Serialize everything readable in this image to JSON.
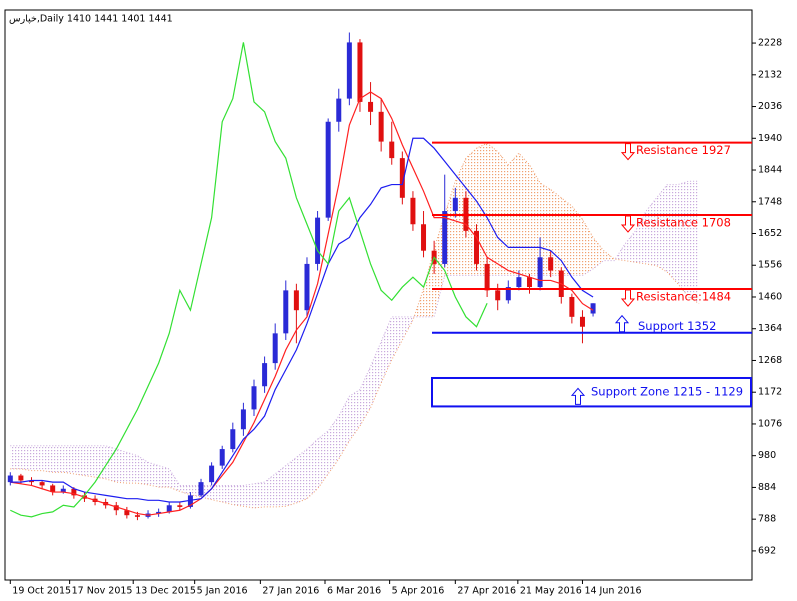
{
  "chart_data": {
    "type": "candlestick",
    "title": "خپارس,Daily  1410 1441 1401 1441",
    "x": [
      0,
      1,
      2,
      3,
      4,
      5,
      6,
      7,
      8,
      9,
      10,
      11,
      12,
      13,
      14,
      15,
      16,
      17,
      18,
      19,
      20,
      21,
      22,
      23,
      24,
      25,
      26,
      27,
      28,
      29,
      30,
      31,
      32,
      33,
      34,
      35,
      36,
      37,
      38,
      39,
      40,
      41,
      42,
      43,
      44,
      45,
      46,
      47,
      48,
      49,
      50,
      51,
      52,
      53,
      54,
      55
    ],
    "open": [
      900,
      920,
      905,
      900,
      890,
      870,
      880,
      860,
      850,
      840,
      830,
      815,
      800,
      795,
      805,
      810,
      830,
      825,
      860,
      900,
      950,
      1000,
      1060,
      1120,
      1190,
      1260,
      1350,
      1480,
      1420,
      1560,
      1700,
      1990,
      2060,
      2230,
      2050,
      2020,
      1930,
      1880,
      1760,
      1680,
      1600,
      1560,
      1720,
      1760,
      1660,
      1560,
      1480,
      1450,
      1490,
      1520,
      1490,
      1580,
      1540,
      1460,
      1400,
      1410
    ],
    "high": [
      930,
      925,
      915,
      905,
      895,
      890,
      885,
      870,
      860,
      850,
      840,
      825,
      810,
      815,
      820,
      840,
      840,
      870,
      910,
      960,
      1010,
      1080,
      1140,
      1210,
      1280,
      1380,
      1510,
      1500,
      1580,
      1720,
      2000,
      2090,
      2260,
      2240,
      2110,
      2060,
      1990,
      1900,
      1780,
      1720,
      1630,
      1830,
      1790,
      1780,
      1680,
      1580,
      1500,
      1510,
      1540,
      1530,
      1640,
      1600,
      1550,
      1470,
      1420,
      1441
    ],
    "low": [
      890,
      895,
      890,
      880,
      860,
      865,
      850,
      840,
      830,
      820,
      800,
      790,
      785,
      790,
      795,
      805,
      815,
      820,
      855,
      890,
      940,
      990,
      1040,
      1100,
      1170,
      1240,
      1330,
      1320,
      1400,
      1540,
      1690,
      1960,
      2040,
      2020,
      1980,
      1900,
      1860,
      1740,
      1660,
      1580,
      1530,
      1550,
      1700,
      1640,
      1540,
      1460,
      1420,
      1440,
      1480,
      1470,
      1480,
      1520,
      1440,
      1380,
      1320,
      1401
    ],
    "close": [
      920,
      905,
      900,
      890,
      870,
      880,
      860,
      850,
      840,
      830,
      815,
      800,
      795,
      805,
      810,
      830,
      825,
      860,
      900,
      950,
      1000,
      1060,
      1120,
      1190,
      1260,
      1350,
      1480,
      1420,
      1560,
      1700,
      1990,
      2060,
      2230,
      2050,
      2020,
      1930,
      1880,
      1760,
      1680,
      1600,
      1560,
      1720,
      1760,
      1660,
      1560,
      1480,
      1450,
      1490,
      1520,
      1490,
      1580,
      1540,
      1460,
      1400,
      1370,
      1441
    ],
    "up_color": "#2a2ad6",
    "down_color": "#e01010",
    "lines": [
      {
        "color": "#ff2020",
        "values": [
          900,
          895,
          890,
          880,
          870,
          870,
          865,
          855,
          845,
          835,
          825,
          815,
          805,
          800,
          805,
          810,
          815,
          830,
          850,
          880,
          920,
          960,
          1020,
          1080,
          1150,
          1220,
          1300,
          1360,
          1400,
          1500,
          1650,
          1800,
          1980,
          2060,
          2080,
          2060,
          2000,
          1920,
          1850,
          1780,
          1700,
          1700,
          1690,
          1680,
          1640,
          1580,
          1560,
          1540,
          1530,
          1520,
          1510,
          1510,
          1500,
          1480,
          1440,
          1420
        ]
      },
      {
        "color": "#1e1ef0",
        "values": [
          900,
          900,
          905,
          905,
          900,
          900,
          880,
          870,
          865,
          860,
          855,
          850,
          850,
          845,
          845,
          840,
          840,
          845,
          850,
          880,
          930,
          980,
          1030,
          1060,
          1100,
          1180,
          1240,
          1300,
          1380,
          1470,
          1560,
          1620,
          1640,
          1700,
          1740,
          1790,
          1800,
          1800,
          1940,
          1940,
          1910,
          1870,
          1830,
          1790,
          1750,
          1700,
          1640,
          1610,
          1610,
          1610,
          1610,
          1600,
          1570,
          1520,
          1480,
          1460
        ]
      },
      {
        "color": "#33e033",
        "values": [
          815,
          800,
          795,
          805,
          810,
          830,
          825,
          860,
          900,
          950,
          1000,
          1060,
          1120,
          1190,
          1260,
          1350,
          1480,
          1420,
          1560,
          1700,
          1990,
          2060,
          2230,
          2050,
          2020,
          1930,
          1880,
          1760,
          1680,
          1600,
          1560,
          1720,
          1760,
          1660,
          1560,
          1480,
          1450,
          1490,
          1520,
          1490,
          1580,
          1540,
          1460,
          1400,
          1370,
          1441,
          null,
          null,
          null,
          null,
          null,
          null,
          null,
          null,
          null,
          null
        ]
      }
    ],
    "cloud": {
      "x": [
        0,
        1,
        2,
        3,
        4,
        5,
        6,
        7,
        8,
        9,
        10,
        11,
        12,
        13,
        14,
        15,
        16,
        17,
        18,
        19,
        20,
        21,
        22,
        23,
        24,
        25,
        26,
        27,
        28,
        29,
        30,
        31,
        32,
        33,
        34,
        35,
        36,
        37,
        38,
        39,
        40,
        41,
        42,
        43,
        44,
        45,
        46,
        47,
        48,
        49,
        50,
        51,
        52,
        53,
        54,
        55,
        56,
        57,
        58,
        59,
        60,
        61,
        62,
        63,
        64,
        65
      ],
      "span_a": [
        940,
        940,
        935,
        935,
        930,
        930,
        925,
        920,
        915,
        910,
        900,
        897,
        897,
        892,
        885,
        885,
        872,
        862,
        855,
        847,
        840,
        832,
        827,
        822,
        825,
        825,
        827,
        837,
        850,
        880,
        925,
        970,
        1025,
        1070,
        1125,
        1200,
        1270,
        1330,
        1390,
        1485,
        1605,
        1710,
        1810,
        1880,
        1910,
        1925,
        1900,
        1860,
        1895,
        1860,
        1805,
        1785,
        1760,
        1735,
        1695,
        1640,
        1600,
        1575,
        1570,
        1565,
        1560,
        1555,
        1535,
        1500,
        1460,
        1440
      ],
      "span_b": [
        1010,
        1010,
        1010,
        1010,
        1010,
        1010,
        1010,
        1010,
        1010,
        1010,
        1000,
        990,
        980,
        960,
        950,
        940,
        890,
        890,
        890,
        890,
        890,
        890,
        890,
        895,
        900,
        925,
        950,
        975,
        1000,
        1030,
        1055,
        1100,
        1160,
        1180,
        1250,
        1325,
        1400,
        1400,
        1400,
        1400,
        1400,
        1525,
        1525,
        1525,
        1525,
        1525,
        1525,
        1525,
        1525,
        1525,
        1525,
        1525,
        1525,
        1525,
        1525,
        1545,
        1570,
        1570,
        1620,
        1660,
        1720,
        1760,
        1800,
        1800,
        1810,
        1810
      ],
      "color_a": "#f0a070",
      "color_b": "#c8a8dc"
    },
    "levels": [
      {
        "label": "Resistance 1927",
        "value": 1927,
        "color": "#ff0000",
        "arrow": "down"
      },
      {
        "label": "Resistance 1708",
        "value": 1708,
        "color": "#ff0000",
        "arrow": "down"
      },
      {
        "label": "Resistance:1484",
        "value": 1484,
        "color": "#ff0000",
        "arrow": "down"
      },
      {
        "label": "Support 1352",
        "value": 1352,
        "color": "#1010f0",
        "arrow": "up"
      }
    ],
    "zones": [
      {
        "label": "Support Zone 1215 - 1129",
        "high": 1215,
        "low": 1129,
        "color": "#1010f0",
        "arrow": "up"
      }
    ],
    "xlim": [
      -0.5,
      70
    ],
    "ylim": [
      604,
      2328
    ],
    "xticks": [
      {
        "value": 0,
        "label": "19 Oct 2015"
      },
      {
        "value": 5.6,
        "label": "17 Nov 2015"
      },
      {
        "value": 11.6,
        "label": "13 Dec 2015"
      },
      {
        "value": 17.4,
        "label": "5 Jan 2016"
      },
      {
        "value": 23.6,
        "label": "27 Jan 2016"
      },
      {
        "value": 29.7,
        "label": "6 Mar 2016"
      },
      {
        "value": 35.8,
        "label": "5 Apr 2016"
      },
      {
        "value": 42,
        "label": "27 Apr 2016"
      },
      {
        "value": 47.9,
        "label": "21 May 2016"
      },
      {
        "value": 54,
        "label": "14 Jun 2016"
      }
    ],
    "yticks": [
      692,
      788,
      884,
      980,
      1076,
      1172,
      1268,
      1364,
      1460,
      1556,
      1652,
      1748,
      1844,
      1940,
      2036,
      2132,
      2228
    ]
  }
}
